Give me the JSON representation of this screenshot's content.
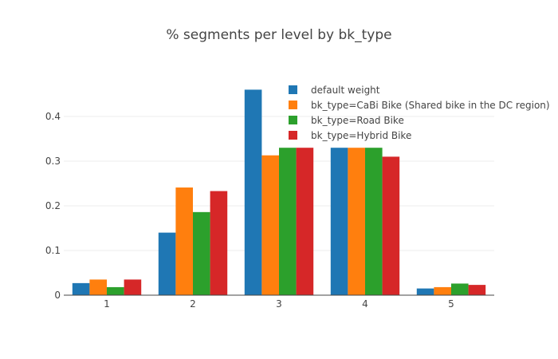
{
  "chart_data": {
    "type": "bar",
    "title": "% segments per level by bk_type",
    "xlabel": "",
    "ylabel": "",
    "categories": [
      "1",
      "2",
      "3",
      "4",
      "5"
    ],
    "ylim": [
      0,
      0.5
    ],
    "yticks": [
      0,
      0.1,
      0.2,
      0.3,
      0.4
    ],
    "ytick_labels": [
      "0",
      "0.1",
      "0.2",
      "0.3",
      "0.4"
    ],
    "grid": true,
    "legend_position": "top-right",
    "series": [
      {
        "name": "default weight",
        "color": "#1f77b4",
        "values": [
          0.027,
          0.14,
          0.46,
          0.33,
          0.015
        ]
      },
      {
        "name": "bk_type=CaBi Bike (Shared bike in the DC region)",
        "color": "#ff7f0e",
        "values": [
          0.035,
          0.241,
          0.313,
          0.33,
          0.018
        ]
      },
      {
        "name": "bk_type=Road Bike",
        "color": "#2ca02c",
        "values": [
          0.018,
          0.186,
          0.33,
          0.33,
          0.026
        ]
      },
      {
        "name": "bk_type=Hybrid Bike",
        "color": "#d62728",
        "values": [
          0.035,
          0.233,
          0.33,
          0.31,
          0.023
        ]
      }
    ]
  }
}
